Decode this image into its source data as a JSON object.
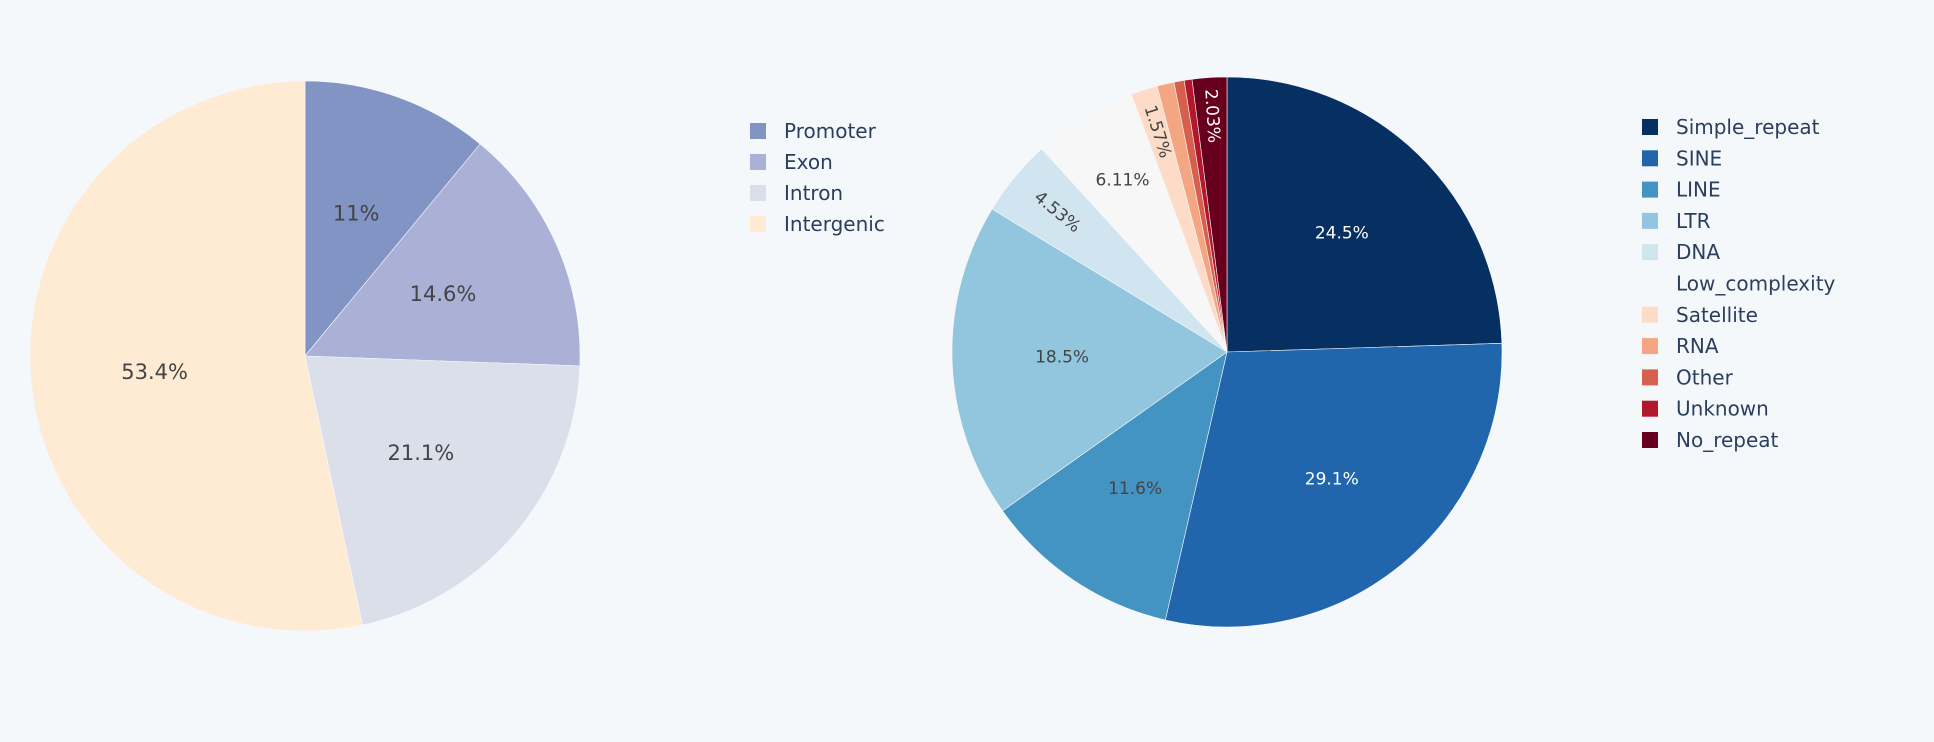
{
  "chart_data": [
    {
      "type": "pie",
      "direction": "clockwise",
      "start": "12 o'clock",
      "legend_position": "right",
      "slices": [
        {
          "label": "Promoter",
          "value": 11.0,
          "text": "11%",
          "color": "#8294c4",
          "text_color": "#444444"
        },
        {
          "label": "Exon",
          "value": 14.6,
          "text": "14.6%",
          "color": "#abb0d6",
          "text_color": "#444444"
        },
        {
          "label": "Intron",
          "value": 21.1,
          "text": "21.1%",
          "color": "#dbdfea",
          "text_color": "#444444"
        },
        {
          "label": "Intergenic",
          "value": 53.4,
          "text": "53.4%",
          "color": "#ffebd4",
          "text_color": "#444444"
        }
      ]
    },
    {
      "type": "pie",
      "direction": "clockwise",
      "start": "12 o'clock",
      "legend_position": "right",
      "slices": [
        {
          "label": "Simple_repeat",
          "value": 24.5,
          "text": "24.5%",
          "color": "#053061",
          "text_color": "#ffffff"
        },
        {
          "label": "SINE",
          "value": 29.1,
          "text": "29.1%",
          "color": "#2166ac",
          "text_color": "#ffffff"
        },
        {
          "label": "LINE",
          "value": 11.6,
          "text": "11.6%",
          "color": "#4393c3",
          "text_color": "#444444"
        },
        {
          "label": "LTR",
          "value": 18.5,
          "text": "18.5%",
          "color": "#92c5de",
          "text_color": "#444444"
        },
        {
          "label": "DNA",
          "value": 4.53,
          "text": "4.53%",
          "color": "#d1e5f0",
          "text_color": "#444444"
        },
        {
          "label": "Low_complexity",
          "value": 6.11,
          "text": "6.11%",
          "color": "#f7f7f7",
          "text_color": "#444444"
        },
        {
          "label": "Satellite",
          "value": 1.57,
          "text": "1.57%",
          "color": "#fddbc7",
          "text_color": "#444444"
        },
        {
          "label": "RNA",
          "value": 1.0,
          "text": "",
          "color": "#f4a582",
          "text_color": "#444444"
        },
        {
          "label": "Other",
          "value": 0.6,
          "text": "",
          "color": "#d6604d",
          "text_color": "#444444"
        },
        {
          "label": "Unknown",
          "value": 0.46,
          "text": "",
          "color": "#b2182b",
          "text_color": "#ffffff"
        },
        {
          "label": "No_repeat",
          "value": 2.03,
          "text": "2.03%",
          "color": "#67001f",
          "text_color": "#ffffff"
        }
      ]
    }
  ]
}
